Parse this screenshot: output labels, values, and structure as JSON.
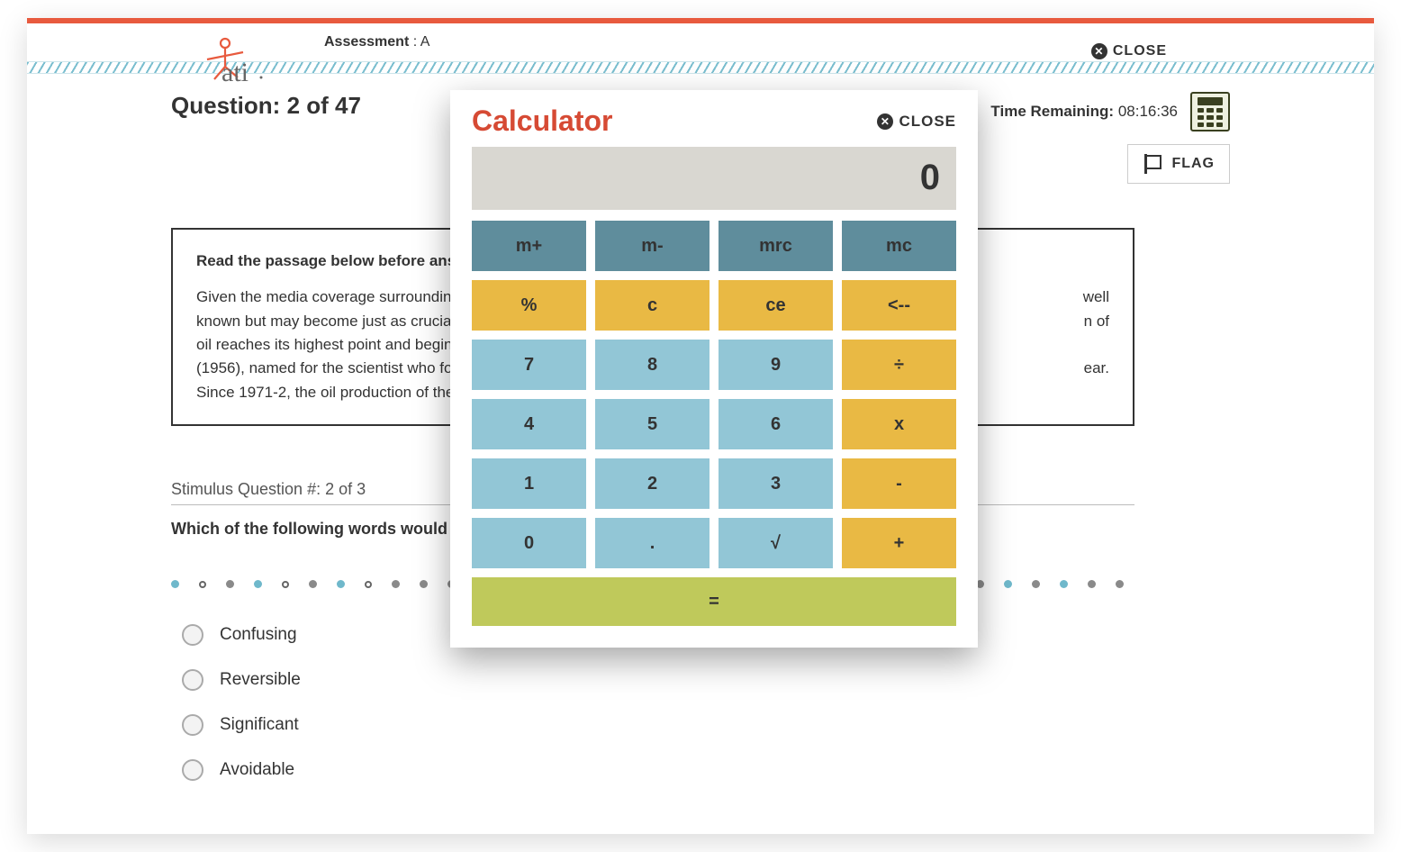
{
  "colors": {
    "accent_red": "#e85a3e",
    "calc_title": "#d64a34",
    "teal": "#5f8d9c",
    "blue": "#92c6d6",
    "yellow": "#e9b944",
    "olive": "#bfc95b",
    "display_bg": "#d9d7d1",
    "dot_active": "#6fb8cb",
    "dot_inactive": "#8a8a8a",
    "dot_hollow": "#666666"
  },
  "header": {
    "assessment_label_prefix": "Assessment",
    "assessment_label_sep": " : ",
    "assessment_label_value": "A",
    "close_label": "CLOSE"
  },
  "question": {
    "counter_prefix": "Question: ",
    "current": 2,
    "total": 47,
    "time_label": "Time Remaining:",
    "time_value": "08:16:36",
    "flag_label": "FLAG"
  },
  "passage": {
    "instruction": "Read the passage below before answ",
    "body_left_1": "Given the media coverage surrounding ",
    "body_right_1": " well ",
    "body_left_2": "known but may become just as crucial i",
    "body_right_2": "n of ",
    "body_left_3": "oil reaches its highest point and begins ",
    "body_left_4": "(1956), named for the scientist who forr",
    "body_right_4": "ear. ",
    "body_left_5": "Since 1971-2, the oil production of the U"
  },
  "stimulus": {
    "label_prefix": "Stimulus Question #:  ",
    "current": 2,
    "total": 3,
    "question_text": "Which of the following words would t"
  },
  "dots": [
    {
      "state": "active"
    },
    {
      "state": "hollow"
    },
    {
      "state": "inactive"
    },
    {
      "state": "active"
    },
    {
      "state": "hollow"
    },
    {
      "state": "inactive"
    },
    {
      "state": "active"
    },
    {
      "state": "hollow"
    },
    {
      "state": "inactive"
    },
    {
      "state": "inactive"
    },
    {
      "state": "inactive"
    },
    {
      "state": "hollow"
    },
    {
      "state": "inactive"
    },
    {
      "state": "inactive"
    },
    {
      "state": "inactive"
    },
    {
      "state": "inactive"
    },
    {
      "state": "inactive"
    },
    {
      "state": "inactive"
    },
    {
      "state": "inactive"
    },
    {
      "state": "inactive"
    },
    {
      "state": "inactive"
    },
    {
      "state": "inactive"
    },
    {
      "state": "hollow"
    },
    {
      "state": "inactive"
    },
    {
      "state": "inactive"
    },
    {
      "state": "inactive"
    },
    {
      "state": "inactive"
    },
    {
      "state": "inactive"
    },
    {
      "state": "active"
    },
    {
      "state": "inactive"
    },
    {
      "state": "active"
    },
    {
      "state": "inactive"
    },
    {
      "state": "active"
    },
    {
      "state": "inactive"
    },
    {
      "state": "inactive"
    }
  ],
  "answers": [
    {
      "label": "Confusing"
    },
    {
      "label": "Reversible"
    },
    {
      "label": "Significant"
    },
    {
      "label": "Avoidable"
    }
  ],
  "calculator": {
    "title": "Calculator",
    "close_label": "CLOSE",
    "display_value": "0",
    "buttons": [
      {
        "label": "m+",
        "color": "teal"
      },
      {
        "label": "m-",
        "color": "teal"
      },
      {
        "label": "mrc",
        "color": "teal"
      },
      {
        "label": "mc",
        "color": "teal"
      },
      {
        "label": "%",
        "color": "yellow"
      },
      {
        "label": "c",
        "color": "yellow"
      },
      {
        "label": "ce",
        "color": "yellow"
      },
      {
        "label": "<--",
        "color": "yellow"
      },
      {
        "label": "7",
        "color": "blue"
      },
      {
        "label": "8",
        "color": "blue"
      },
      {
        "label": "9",
        "color": "blue"
      },
      {
        "label": "÷",
        "color": "yellow"
      },
      {
        "label": "4",
        "color": "blue"
      },
      {
        "label": "5",
        "color": "blue"
      },
      {
        "label": "6",
        "color": "blue"
      },
      {
        "label": "x",
        "color": "yellow"
      },
      {
        "label": "1",
        "color": "blue"
      },
      {
        "label": "2",
        "color": "blue"
      },
      {
        "label": "3",
        "color": "blue"
      },
      {
        "label": "-",
        "color": "yellow"
      },
      {
        "label": "0",
        "color": "blue"
      },
      {
        "label": ".",
        "color": "blue"
      },
      {
        "label": "√",
        "color": "blue"
      },
      {
        "label": "+",
        "color": "yellow"
      }
    ],
    "equals_label": "="
  }
}
